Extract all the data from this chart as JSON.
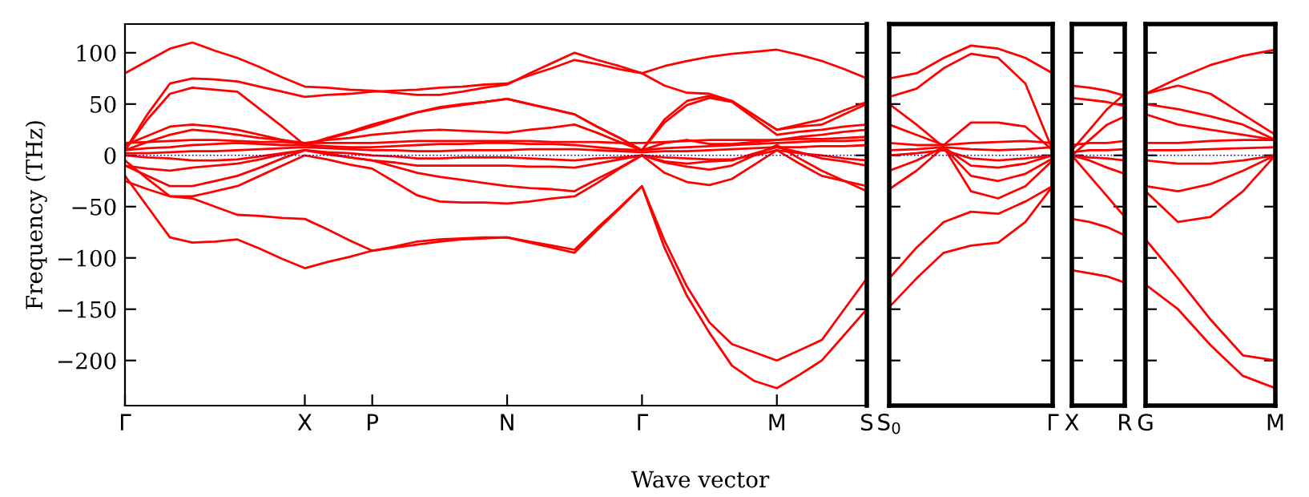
{
  "chart_data": [
    {
      "type": "line",
      "xlabel": "Wave vector",
      "ylabel": "Frequency (THz)",
      "ylim": [
        -244,
        128
      ],
      "categories": [
        "Γ",
        null,
        null,
        null,
        null,
        null,
        null,
        null,
        "X",
        null,
        null,
        "P",
        null,
        null,
        null,
        null,
        null,
        "N",
        null,
        null,
        null,
        null,
        null,
        "Γ",
        null,
        null,
        null,
        null,
        null,
        "M",
        null,
        null,
        null,
        "S"
      ],
      "yticks": [
        {
          "value": -200,
          "label": "−200"
        },
        {
          "value": -150,
          "label": "−150"
        },
        {
          "value": -100,
          "label": "−100"
        },
        {
          "value": -50,
          "label": "−50"
        },
        0,
        50,
        100
      ],
      "grid": false,
      "legend": false,
      "line_style": "solid",
      "marker": "none",
      "ref_lines": [
        {
          "axis": "y",
          "value": 0,
          "color": "#0000ff",
          "line_style": "dotted"
        }
      ],
      "series": [
        {
          "color": "#ff0000",
          "values": [
            80,
            92,
            104,
            110,
            102,
            95,
            86,
            76,
            67,
            66,
            64,
            63,
            61,
            59,
            59,
            62,
            66,
            69,
            80,
            90,
            100,
            93,
            87,
            80,
            87,
            92,
            96,
            99,
            101,
            103,
            98,
            92,
            84,
            75
          ]
        },
        {
          "color": "#ff0000",
          "values": [
            5,
            40,
            70,
            75,
            74,
            72,
            67,
            62,
            57,
            59,
            60,
            62,
            63,
            64,
            66,
            67,
            69,
            70,
            78,
            85,
            93,
            89,
            84,
            80,
            68,
            61,
            60,
            53,
            39,
            25,
            30,
            35,
            44,
            52
          ]
        },
        {
          "color": "#ff0000",
          "values": [
            5,
            35,
            60,
            66,
            64,
            62,
            45,
            28,
            10,
            16,
            22,
            28,
            35,
            42,
            47,
            50,
            52,
            55,
            50,
            45,
            40,
            28,
            17,
            5,
            35,
            53,
            58,
            53,
            39,
            25,
            28,
            30,
            40,
            50
          ]
        },
        {
          "color": "#ff0000",
          "values": [
            -20,
            -50,
            -80,
            -85,
            -84,
            -82,
            -91,
            -101,
            -110,
            -104,
            -99,
            -93,
            -90,
            -87,
            -84,
            -82,
            -81,
            -80,
            -85,
            -90,
            -95,
            -73,
            -52,
            -30,
            -90,
            -137,
            -173,
            -205,
            -220,
            -227,
            -214,
            -200,
            -175,
            -150
          ]
        },
        {
          "color": "#ff0000",
          "values": [
            -25,
            -33,
            -40,
            -42,
            -50,
            -58,
            -59,
            -61,
            -62,
            -72,
            -83,
            -93,
            -89,
            -84,
            -82,
            -81,
            -80,
            -80,
            -84,
            -88,
            -92,
            -71,
            -51,
            -30,
            -83,
            -128,
            -163,
            -184,
            -192,
            -200,
            -190,
            -180,
            -150,
            -120
          ]
        },
        {
          "color": "#ff0000",
          "values": [
            -5,
            -23,
            -40,
            -40,
            -35,
            -30,
            -20,
            -10,
            0,
            -4,
            -9,
            -13,
            -26,
            -39,
            -45,
            -46,
            -46,
            -47,
            -45,
            -42,
            -40,
            -27,
            -13,
            0,
            -17,
            -26,
            -29,
            -23,
            -9,
            5,
            -8,
            -20,
            -25,
            -30
          ]
        },
        {
          "color": "#ff0000",
          "values": [
            -10,
            -20,
            -30,
            -30,
            -25,
            -20,
            -12,
            -3,
            5,
            2,
            -2,
            -5,
            -11,
            -17,
            -21,
            -24,
            -27,
            -30,
            -32,
            -33,
            -35,
            -23,
            -12,
            0,
            -7,
            -11,
            -14,
            -10,
            0,
            10,
            -3,
            -15,
            -25,
            -35
          ]
        },
        {
          "color": "#ff0000",
          "values": [
            10,
            19,
            28,
            30,
            28,
            25,
            20,
            15,
            10,
            17,
            23,
            30,
            36,
            42,
            46,
            49,
            52,
            55,
            50,
            45,
            40,
            28,
            17,
            5,
            32,
            49,
            56,
            52,
            36,
            20,
            23,
            25,
            28,
            30
          ]
        },
        {
          "color": "#ff0000",
          "values": [
            5,
            13,
            20,
            25,
            23,
            20,
            17,
            15,
            12,
            15,
            17,
            20,
            22,
            24,
            25,
            24,
            23,
            22,
            25,
            27,
            30,
            22,
            13,
            5,
            12,
            15,
            11,
            11,
            13,
            15,
            18,
            20,
            23,
            25
          ]
        },
        {
          "color": "#ff0000",
          "values": [
            5,
            7,
            8,
            10,
            11,
            12,
            11,
            10,
            10,
            9,
            8,
            8,
            9,
            10,
            11,
            11,
            12,
            12,
            11,
            11,
            10,
            8,
            6,
            5,
            7,
            8,
            9,
            10,
            11,
            12,
            13,
            14,
            14,
            15
          ]
        },
        {
          "color": "#ff0000",
          "values": [
            2,
            2,
            3,
            4,
            4,
            5,
            6,
            7,
            8,
            7,
            6,
            5,
            5,
            4,
            4,
            5,
            5,
            5,
            6,
            6,
            6,
            5,
            4,
            3,
            4,
            4,
            5,
            6,
            7,
            8,
            8,
            9,
            9,
            10
          ]
        },
        {
          "color": "#ff0000",
          "values": [
            0,
            -2,
            -3,
            -5,
            -5,
            -4,
            -1,
            2,
            5,
            3,
            2,
            0,
            -1,
            -3,
            -3,
            -2,
            -2,
            -2,
            -3,
            -4,
            -5,
            -3,
            -2,
            0,
            -2,
            -3,
            -4,
            -4,
            0,
            5,
            2,
            0,
            -3,
            -5
          ]
        },
        {
          "color": "#ff0000",
          "values": [
            12,
            13,
            14,
            15,
            15,
            14,
            13,
            13,
            12,
            12,
            12,
            12,
            13,
            14,
            14,
            14,
            14,
            14,
            14,
            13,
            13,
            13,
            12,
            12,
            13,
            14,
            15,
            15,
            15,
            15,
            16,
            16,
            17,
            18
          ]
        },
        {
          "color": "#ff0000",
          "values": [
            -10,
            -13,
            -15,
            -12,
            -10,
            -8,
            -4,
            1,
            5,
            1,
            -2,
            -5,
            -7,
            -10,
            -10,
            -10,
            -10,
            -10,
            -11,
            -11,
            -12,
            -8,
            -4,
            0,
            -6,
            -8,
            -6,
            -5,
            2,
            8,
            3,
            -3,
            -6,
            -10
          ]
        }
      ]
    },
    {
      "type": "line",
      "ylim": [
        -244,
        128
      ],
      "categories": [
        "S$_{0}$",
        null,
        null,
        null,
        null,
        null,
        "Γ"
      ],
      "yticks": [
        {
          "value": -200,
          "label": null
        },
        {
          "value": -150,
          "label": null
        },
        {
          "value": -100,
          "label": null
        },
        {
          "value": -50,
          "label": null
        },
        {
          "value": 0,
          "label": null
        },
        {
          "value": 50,
          "label": null
        },
        {
          "value": 100,
          "label": null
        }
      ],
      "tick_labels": "x",
      "grid": false,
      "legend": false,
      "line_style": "solid",
      "marker": "none",
      "ref_lines": [
        {
          "axis": "y",
          "value": 0,
          "color": "#0000ff",
          "line_style": "dotted"
        }
      ],
      "series": [
        {
          "color": "#ff0000",
          "values": [
            75,
            80,
            95,
            107,
            104,
            95,
            80
          ]
        },
        {
          "color": "#ff0000",
          "values": [
            57,
            65,
            85,
            99,
            95,
            70,
            5
          ]
        },
        {
          "color": "#ff0000",
          "values": [
            -148,
            -120,
            -95,
            -88,
            -85,
            -65,
            -30
          ]
        },
        {
          "color": "#ff0000",
          "values": [
            -120,
            -90,
            -65,
            -55,
            -57,
            -45,
            -30
          ]
        },
        {
          "color": "#ff0000",
          "values": [
            50,
            30,
            8,
            -35,
            -42,
            -30,
            -5
          ]
        },
        {
          "color": "#ff0000",
          "values": [
            -33,
            -15,
            8,
            -20,
            -25,
            -18,
            -3
          ]
        },
        {
          "color": "#ff0000",
          "values": [
            30,
            20,
            10,
            32,
            32,
            28,
            5
          ]
        },
        {
          "color": "#ff0000",
          "values": [
            -15,
            -5,
            8,
            -10,
            -12,
            -8,
            0
          ]
        },
        {
          "color": "#ff0000",
          "values": [
            12,
            10,
            10,
            12,
            13,
            14,
            12
          ]
        },
        {
          "color": "#ff0000",
          "values": [
            5,
            6,
            8,
            6,
            5,
            6,
            8
          ]
        },
        {
          "color": "#ff0000",
          "values": [
            0,
            2,
            5,
            -3,
            -5,
            -3,
            0
          ]
        }
      ]
    },
    {
      "type": "line",
      "ylim": [
        -244,
        128
      ],
      "categories": [
        "X",
        null,
        null,
        "R"
      ],
      "yticks": [
        {
          "value": -200,
          "label": null
        },
        {
          "value": -150,
          "label": null
        },
        {
          "value": -100,
          "label": null
        },
        {
          "value": -50,
          "label": null
        },
        {
          "value": 0,
          "label": null
        },
        {
          "value": 50,
          "label": null
        },
        {
          "value": 100,
          "label": null
        }
      ],
      "tick_labels": "x",
      "grid": false,
      "legend": false,
      "line_style": "solid",
      "marker": "none",
      "ref_lines": [
        {
          "axis": "y",
          "value": 0,
          "color": "#0000ff",
          "line_style": "dotted"
        }
      ],
      "series": [
        {
          "color": "#ff0000",
          "values": [
            68,
            66,
            63,
            58
          ]
        },
        {
          "color": "#ff0000",
          "values": [
            56,
            54,
            52,
            48
          ]
        },
        {
          "color": "#ff0000",
          "values": [
            5,
            25,
            45,
            60
          ]
        },
        {
          "color": "#ff0000",
          "values": [
            0,
            15,
            30,
            38
          ]
        },
        {
          "color": "#ff0000",
          "values": [
            -62,
            -65,
            -70,
            -78
          ]
        },
        {
          "color": "#ff0000",
          "values": [
            -112,
            -115,
            -118,
            -124
          ]
        },
        {
          "color": "#ff0000",
          "values": [
            0,
            -20,
            -40,
            -60
          ]
        },
        {
          "color": "#ff0000",
          "values": [
            0,
            -5,
            -12,
            -18
          ]
        },
        {
          "color": "#ff0000",
          "values": [
            10,
            12,
            12,
            14
          ]
        },
        {
          "color": "#ff0000",
          "values": [
            3,
            5,
            5,
            6
          ]
        },
        {
          "color": "#ff0000",
          "values": [
            0,
            -2,
            -3,
            -5
          ]
        }
      ]
    },
    {
      "type": "line",
      "ylim": [
        -244,
        128
      ],
      "categories": [
        "G",
        null,
        null,
        null,
        "M"
      ],
      "yticks": [
        {
          "value": -200,
          "label": null
        },
        {
          "value": -150,
          "label": null
        },
        {
          "value": -100,
          "label": null
        },
        {
          "value": -50,
          "label": null
        },
        {
          "value": 0,
          "label": null
        },
        {
          "value": 50,
          "label": null
        },
        {
          "value": 100,
          "label": null
        }
      ],
      "tick_labels": "x",
      "grid": false,
      "legend": false,
      "line_style": "solid",
      "marker": "none",
      "ref_lines": [
        {
          "axis": "y",
          "value": 0,
          "color": "#0000ff",
          "line_style": "dotted"
        }
      ],
      "series": [
        {
          "color": "#ff0000",
          "values": [
            60,
            75,
            88,
            97,
            103
          ]
        },
        {
          "color": "#ff0000",
          "values": [
            60,
            68,
            60,
            40,
            20
          ]
        },
        {
          "color": "#ff0000",
          "values": [
            50,
            45,
            38,
            30,
            15
          ]
        },
        {
          "color": "#ff0000",
          "values": [
            -82,
            -120,
            -160,
            -195,
            -200
          ]
        },
        {
          "color": "#ff0000",
          "values": [
            -126,
            -150,
            -185,
            -215,
            -227
          ]
        },
        {
          "color": "#ff0000",
          "values": [
            -35,
            -65,
            -60,
            -35,
            0
          ]
        },
        {
          "color": "#ff0000",
          "values": [
            -30,
            -35,
            -28,
            -15,
            0
          ]
        },
        {
          "color": "#ff0000",
          "values": [
            40,
            30,
            25,
            20,
            15
          ]
        },
        {
          "color": "#ff0000",
          "values": [
            12,
            12,
            14,
            15,
            15
          ]
        },
        {
          "color": "#ff0000",
          "values": [
            5,
            5,
            6,
            7,
            8
          ]
        },
        {
          "color": "#ff0000",
          "values": [
            -5,
            -8,
            -8,
            -5,
            0
          ]
        }
      ]
    }
  ]
}
